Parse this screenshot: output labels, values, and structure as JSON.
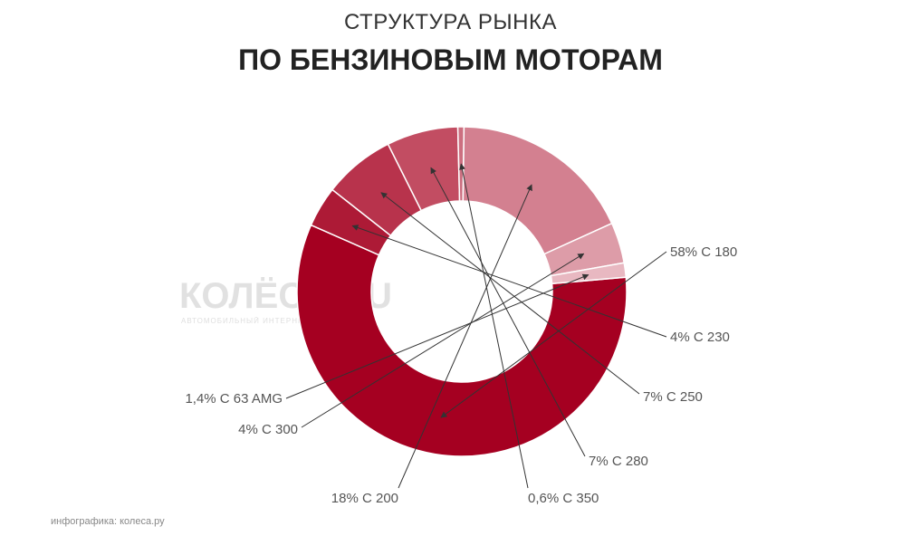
{
  "header": {
    "subtitle": "СТРУКТУРА РЫНКА",
    "title": "ПО БЕНЗИНОВЫМ МОТОРАМ"
  },
  "watermark": {
    "logo_text": "КОЛЁСА.RU",
    "tagline": "АВТОМОБИЛЬНЫЙ ИНТЕРНЕТ-ЖУРНАЛ"
  },
  "footer": {
    "credit": "инфографика: колеса.ру"
  },
  "chart_data": {
    "type": "pie",
    "donut": true,
    "title": "ПО БЕНЗИНОВЫМ МОТОРАМ",
    "subtitle": "СТРУКТУРА РЫНКА",
    "slices": [
      {
        "label": "58% C 180",
        "value": 58,
        "color": "#a50021"
      },
      {
        "label": "4% C 230",
        "value": 4,
        "color": "#ad1a36"
      },
      {
        "label": "7% C 250",
        "value": 7,
        "color": "#b8334c"
      },
      {
        "label": "7% C 280",
        "value": 7,
        "color": "#c24d62"
      },
      {
        "label": "0,6% C 350",
        "value": 0.6,
        "color": "#cc6f80"
      },
      {
        "label": "18% C 200",
        "value": 18,
        "color": "#d38090"
      },
      {
        "label": "4% C 300",
        "value": 4,
        "color": "#dd9ca8"
      },
      {
        "label": "1,4% C 63 AMG",
        "value": 1.4,
        "color": "#e8b8c1"
      }
    ]
  }
}
